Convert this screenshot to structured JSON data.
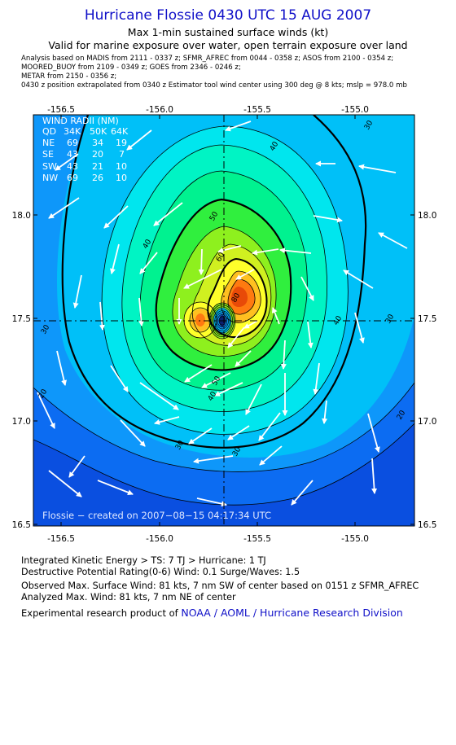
{
  "header": {
    "title": "Hurricane Flossie 0430 UTC 15 AUG 2007",
    "subtitle1": "Max 1-min sustained surface winds (kt)",
    "subtitle2": "Valid for marine exposure over water, open terrain exposure over land"
  },
  "analysis_notes": [
    "Analysis based on   MADIS from 2111 - 0337 z;   SFMR_AFREC from 0044 - 0358 z;   ASOS from 2100 - 0354 z;",
    "MOORED_BUOY from 2109 - 0349 z;   GOES from 2346 - 0246 z;",
    "METAR from 2150 - 0356 z;",
    "        0430 z position extrapolated from 0340 z Estimator tool wind center using 300 deg @ 8 kts; mslp = 978.0 mb"
  ],
  "map": {
    "lon_ticks": [
      "-156.5",
      "-156.0",
      "-155.5",
      "-155.0"
    ],
    "lat_ticks": [
      "18.0",
      "17.5",
      "17.0",
      "16.5"
    ],
    "wind_radii": {
      "title": "WIND RADII (NM)",
      "headers": [
        "QD",
        "34K",
        "50K",
        "64K"
      ],
      "rows": [
        [
          "NE",
          "69",
          "34",
          "19"
        ],
        [
          "SE",
          "43",
          "20",
          "7"
        ],
        [
          "SW",
          "43",
          "21",
          "10"
        ],
        [
          "NW",
          "69",
          "26",
          "10"
        ]
      ]
    },
    "contour_labels": [
      "30",
      "40",
      "50",
      "60",
      "80",
      "30",
      "30",
      "20",
      "30",
      "40",
      "40",
      "50",
      "40",
      "30",
      "20"
    ],
    "watermark": "Flossie − created on 2007−08−15 04:17:34 UTC",
    "colors": {
      "band_lt20": "#0a4fe0",
      "band_20": "#0c6cf2",
      "band_25": "#0e97fa",
      "band_30": "#00c0f8",
      "band_35": "#00e6ee",
      "band_40": "#00f4c4",
      "band_45": "#00f290",
      "band_50": "#30ef3e",
      "band_55": "#8ef01e",
      "band_60": "#d0f020",
      "band_65": "#ffff2a",
      "band_70": "#ffc020",
      "band_75": "#ff7a10",
      "band_80": "#e84a08",
      "eye_core": "#0a2070"
    }
  },
  "footer": {
    "ike": "Integrated Kinetic Energy > TS: 7 TJ   > Hurricane: 1 TJ",
    "dpr": "Destructive Potential Rating(0-6)   Wind: 0.1 Surge/Waves: 1.5",
    "observed": "Observed Max. Surface Wind: 81 kts, 7 nm SW of center based on 0151 z SFMR_AFREC",
    "analyzed": "Analyzed Max. Wind: 81 kts, 7 nm NE of center",
    "credit_prefix": "Experimental research product of ",
    "credit_org": "NOAA / AOML / Hurricane Research Division"
  }
}
